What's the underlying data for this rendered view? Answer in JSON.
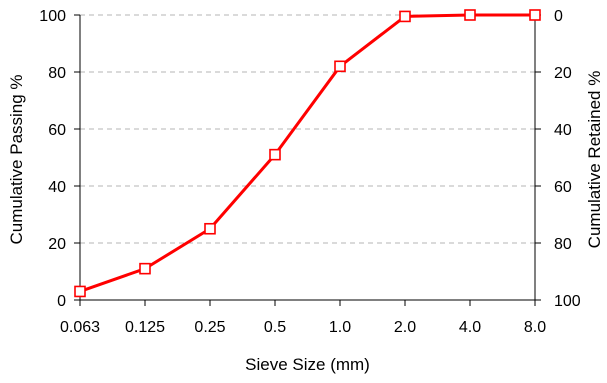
{
  "chart_data": {
    "type": "line",
    "categories": [
      "0.063",
      "0.125",
      "0.25",
      "0.5",
      "1.0",
      "2.0",
      "4.0",
      "8.0"
    ],
    "series": [
      {
        "values": [
          3,
          11,
          25,
          51,
          82,
          99.5,
          100,
          100
        ]
      }
    ],
    "xlabel": "Sieve Size (mm)",
    "ylabel": "Cumulative Passing %",
    "y2label": "Cumulative Retained %",
    "ylim": [
      0,
      100
    ],
    "y2lim": [
      100,
      0
    ],
    "yticks": [
      "0",
      "20",
      "40",
      "60",
      "80",
      "100"
    ],
    "y2ticks": [
      "100",
      "80",
      "60",
      "40",
      "20",
      "0"
    ],
    "grid": "horizontal dashed",
    "series_color": "#ff0000",
    "marker": "hollow-square"
  }
}
